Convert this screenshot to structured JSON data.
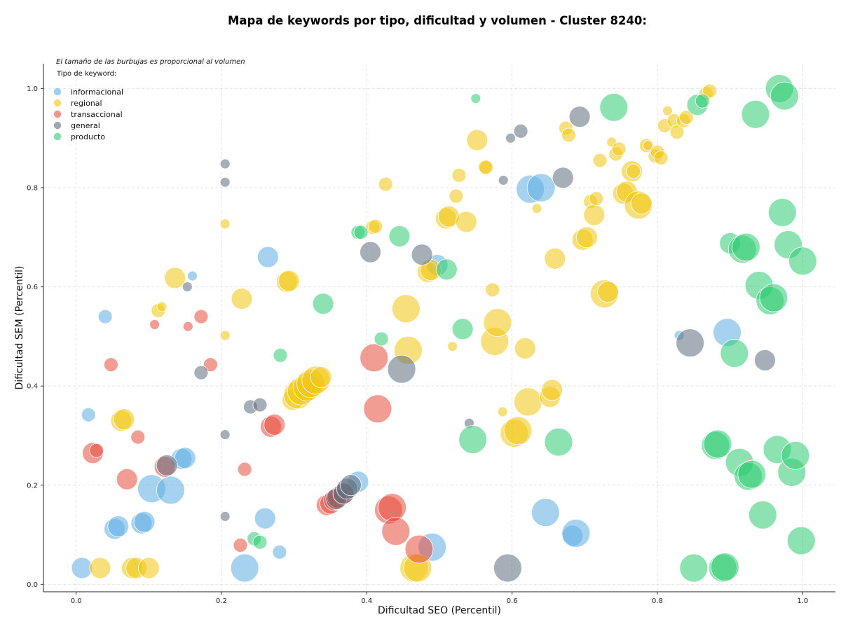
{
  "chart_data": {
    "type": "scatter",
    "title": "Mapa de keywords por tipo, dificultad y volumen - Cluster 8240:",
    "xlabel": "Dificultad SEO (Percentil)",
    "ylabel": "Dificultad SEM (Percentil)",
    "annotation": "El tamaño de las burbujas es proporcional al volumen",
    "xlim": [
      -0.045,
      1.045
    ],
    "ylim": [
      -0.015,
      1.05
    ],
    "x_ticks": [
      "0.0",
      "0.2",
      "0.4",
      "0.6",
      "0.8",
      "1.0"
    ],
    "y_ticks": [
      "0.0",
      "0.2",
      "0.4",
      "0.6",
      "0.8",
      "1.0"
    ],
    "grid": true,
    "legend": {
      "title": "Tipo de keyword:",
      "position": "top-left"
    },
    "series": [
      {
        "name": "informacional",
        "color": "#5DADE2",
        "points": [
          [
            0.008,
            0.033,
            3
          ],
          [
            0.04,
            0.54,
            2
          ],
          [
            0.017,
            0.342,
            2
          ],
          [
            0.053,
            0.112,
            3
          ],
          [
            0.058,
            0.117,
            3
          ],
          [
            0.09,
            0.123,
            3
          ],
          [
            0.094,
            0.126,
            3
          ],
          [
            0.104,
            0.193,
            4
          ],
          [
            0.13,
            0.19,
            4
          ],
          [
            0.145,
            0.253,
            3
          ],
          [
            0.15,
            0.255,
            3
          ],
          [
            0.16,
            0.622,
            1
          ],
          [
            0.232,
            0.033,
            4
          ],
          [
            0.264,
            0.66,
            3
          ],
          [
            0.26,
            0.133,
            3
          ],
          [
            0.28,
            0.065,
            2
          ],
          [
            0.388,
            0.207,
            3
          ],
          [
            0.49,
            0.075,
            4
          ],
          [
            0.497,
            0.644,
            3
          ],
          [
            0.625,
            0.797,
            4
          ],
          [
            0.64,
            0.8,
            4
          ],
          [
            0.646,
            0.145,
            4
          ],
          [
            0.683,
            0.098,
            3
          ],
          [
            0.688,
            0.103,
            4
          ],
          [
            0.83,
            0.502,
            1
          ],
          [
            0.896,
            0.508,
            4
          ]
        ]
      },
      {
        "name": "regional",
        "color": "#F1C40F",
        "points": [
          [
            0.033,
            0.033,
            3
          ],
          [
            0.062,
            0.33,
            3
          ],
          [
            0.066,
            0.333,
            3
          ],
          [
            0.077,
            0.033,
            3
          ],
          [
            0.083,
            0.033,
            3
          ],
          [
            0.1,
            0.033,
            3
          ],
          [
            0.113,
            0.552,
            2
          ],
          [
            0.118,
            0.56,
            1
          ],
          [
            0.136,
            0.618,
            3
          ],
          [
            0.205,
            0.727,
            1
          ],
          [
            0.205,
            0.502,
            1
          ],
          [
            0.228,
            0.576,
            3
          ],
          [
            0.29,
            0.61,
            3
          ],
          [
            0.293,
            0.612,
            3
          ],
          [
            0.298,
            0.372,
            3
          ],
          [
            0.305,
            0.382,
            4
          ],
          [
            0.31,
            0.39,
            4
          ],
          [
            0.318,
            0.398,
            4
          ],
          [
            0.323,
            0.405,
            4
          ],
          [
            0.33,
            0.412,
            4
          ],
          [
            0.337,
            0.418,
            3
          ],
          [
            0.408,
            0.72,
            2
          ],
          [
            0.412,
            0.722,
            2
          ],
          [
            0.426,
            0.807,
            2
          ],
          [
            0.454,
            0.556,
            4
          ],
          [
            0.457,
            0.472,
            4
          ],
          [
            0.465,
            0.033,
            4
          ],
          [
            0.47,
            0.033,
            4
          ],
          [
            0.484,
            0.63,
            3
          ],
          [
            0.488,
            0.634,
            3
          ],
          [
            0.509,
            0.738,
            3
          ],
          [
            0.513,
            0.742,
            3
          ],
          [
            0.518,
            0.48,
            1
          ],
          [
            0.523,
            0.783,
            2
          ],
          [
            0.527,
            0.825,
            2
          ],
          [
            0.537,
            0.731,
            3
          ],
          [
            0.552,
            0.896,
            3
          ],
          [
            0.563,
            0.842,
            2
          ],
          [
            0.564,
            0.841,
            2
          ],
          [
            0.573,
            0.594,
            2
          ],
          [
            0.576,
            0.49,
            4
          ],
          [
            0.58,
            0.528,
            4
          ],
          [
            0.587,
            0.348,
            1
          ],
          [
            0.603,
            0.305,
            4
          ],
          [
            0.608,
            0.31,
            4
          ],
          [
            0.618,
            0.476,
            3
          ],
          [
            0.622,
            0.368,
            4
          ],
          [
            0.634,
            0.758,
            1
          ],
          [
            0.652,
            0.378,
            3
          ],
          [
            0.655,
            0.392,
            3
          ],
          [
            0.659,
            0.657,
            3
          ],
          [
            0.674,
            0.92,
            2
          ],
          [
            0.678,
            0.906,
            2
          ],
          [
            0.697,
            0.695,
            3
          ],
          [
            0.703,
            0.7,
            3
          ],
          [
            0.708,
            0.772,
            2
          ],
          [
            0.713,
            0.745,
            3
          ],
          [
            0.716,
            0.778,
            2
          ],
          [
            0.721,
            0.855,
            2
          ],
          [
            0.727,
            0.586,
            4
          ],
          [
            0.732,
            0.59,
            3
          ],
          [
            0.737,
            0.892,
            1
          ],
          [
            0.743,
            0.868,
            2
          ],
          [
            0.747,
            0.878,
            2
          ],
          [
            0.753,
            0.788,
            3
          ],
          [
            0.758,
            0.792,
            3
          ],
          [
            0.765,
            0.833,
            3
          ],
          [
            0.767,
            0.833,
            2
          ],
          [
            0.774,
            0.765,
            4
          ],
          [
            0.778,
            0.768,
            3
          ],
          [
            0.785,
            0.885,
            2
          ],
          [
            0.787,
            0.885,
            1
          ],
          [
            0.797,
            0.864,
            2
          ],
          [
            0.8,
            0.872,
            2
          ],
          [
            0.805,
            0.86,
            2
          ],
          [
            0.81,
            0.925,
            2
          ],
          [
            0.814,
            0.955,
            1
          ],
          [
            0.823,
            0.935,
            2
          ],
          [
            0.827,
            0.912,
            2
          ],
          [
            0.836,
            0.935,
            2
          ],
          [
            0.84,
            0.942,
            2
          ],
          [
            0.867,
            0.99,
            2
          ],
          [
            0.872,
            0.995,
            2
          ]
        ]
      },
      {
        "name": "transaccional",
        "color": "#E74C3C",
        "points": [
          [
            0.023,
            0.265,
            3
          ],
          [
            0.028,
            0.27,
            2
          ],
          [
            0.048,
            0.443,
            2
          ],
          [
            0.07,
            0.212,
            3
          ],
          [
            0.085,
            0.297,
            2
          ],
          [
            0.108,
            0.524,
            1
          ],
          [
            0.122,
            0.237,
            3
          ],
          [
            0.154,
            0.52,
            1
          ],
          [
            0.172,
            0.54,
            2
          ],
          [
            0.185,
            0.443,
            2
          ],
          [
            0.226,
            0.079,
            2
          ],
          [
            0.232,
            0.232,
            2
          ],
          [
            0.268,
            0.318,
            3
          ],
          [
            0.273,
            0.322,
            3
          ],
          [
            0.345,
            0.16,
            3
          ],
          [
            0.35,
            0.163,
            3
          ],
          [
            0.355,
            0.17,
            3
          ],
          [
            0.36,
            0.175,
            3
          ],
          [
            0.368,
            0.183,
            3
          ],
          [
            0.41,
            0.457,
            4
          ],
          [
            0.415,
            0.354,
            4
          ],
          [
            0.43,
            0.15,
            4
          ],
          [
            0.435,
            0.155,
            4
          ],
          [
            0.44,
            0.107,
            4
          ],
          [
            0.472,
            0.071,
            4
          ]
        ]
      },
      {
        "name": "general",
        "color": "#5D6D7E",
        "points": [
          [
            0.125,
            0.24,
            3
          ],
          [
            0.153,
            0.6,
            1
          ],
          [
            0.172,
            0.427,
            2
          ],
          [
            0.205,
            0.848,
            1
          ],
          [
            0.205,
            0.811,
            1
          ],
          [
            0.205,
            0.302,
            1
          ],
          [
            0.205,
            0.137,
            1
          ],
          [
            0.24,
            0.358,
            2
          ],
          [
            0.253,
            0.362,
            2
          ],
          [
            0.358,
            0.172,
            3
          ],
          [
            0.368,
            0.183,
            3
          ],
          [
            0.373,
            0.193,
            3
          ],
          [
            0.378,
            0.2,
            3
          ],
          [
            0.405,
            0.67,
            3
          ],
          [
            0.448,
            0.434,
            4
          ],
          [
            0.476,
            0.665,
            3
          ],
          [
            0.541,
            0.325,
            1
          ],
          [
            0.588,
            0.815,
            1
          ],
          [
            0.598,
            0.9,
            1
          ],
          [
            0.594,
            0.033,
            4
          ],
          [
            0.612,
            0.914,
            2
          ],
          [
            0.67,
            0.82,
            3
          ],
          [
            0.693,
            0.943,
            3
          ],
          [
            0.845,
            0.487,
            4
          ],
          [
            0.948,
            0.452,
            3
          ]
        ]
      },
      {
        "name": "producto",
        "color": "#2ECC71",
        "points": [
          [
            0.245,
            0.092,
            2
          ],
          [
            0.253,
            0.085,
            2
          ],
          [
            0.281,
            0.462,
            2
          ],
          [
            0.34,
            0.566,
            3
          ],
          [
            0.388,
            0.71,
            2
          ],
          [
            0.392,
            0.71,
            2
          ],
          [
            0.42,
            0.495,
            2
          ],
          [
            0.445,
            0.702,
            3
          ],
          [
            0.51,
            0.635,
            3
          ],
          [
            0.532,
            0.515,
            3
          ],
          [
            0.546,
            0.292,
            4
          ],
          [
            0.55,
            0.98,
            1
          ],
          [
            0.664,
            0.287,
            4
          ],
          [
            0.74,
            0.962,
            4
          ],
          [
            0.85,
            0.033,
            4
          ],
          [
            0.855,
            0.967,
            3
          ],
          [
            0.862,
            0.975,
            2
          ],
          [
            0.88,
            0.28,
            4
          ],
          [
            0.883,
            0.283,
            4
          ],
          [
            0.89,
            0.033,
            4
          ],
          [
            0.893,
            0.035,
            4
          ],
          [
            0.9,
            0.688,
            3
          ],
          [
            0.906,
            0.466,
            4
          ],
          [
            0.913,
            0.246,
            4
          ],
          [
            0.917,
            0.676,
            4
          ],
          [
            0.922,
            0.68,
            4
          ],
          [
            0.925,
            0.218,
            4
          ],
          [
            0.93,
            0.222,
            4
          ],
          [
            0.935,
            0.948,
            4
          ],
          [
            0.94,
            0.603,
            4
          ],
          [
            0.945,
            0.14,
            4
          ],
          [
            0.955,
            0.572,
            4
          ],
          [
            0.96,
            0.578,
            4
          ],
          [
            0.965,
            0.272,
            4
          ],
          [
            0.968,
            1.0,
            4
          ],
          [
            0.975,
            0.985,
            4
          ],
          [
            0.972,
            0.75,
            4
          ],
          [
            0.98,
            0.685,
            4
          ],
          [
            0.985,
            0.226,
            4
          ],
          [
            0.99,
            0.26,
            4
          ],
          [
            0.998,
            0.088,
            4
          ],
          [
            1.0,
            0.652,
            4
          ]
        ]
      }
    ]
  }
}
